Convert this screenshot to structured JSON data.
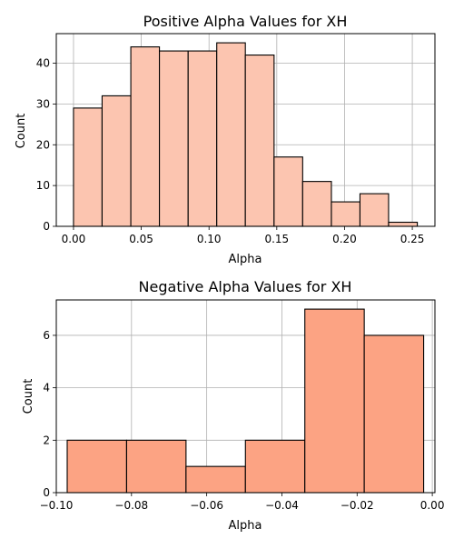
{
  "chart_data": [
    {
      "type": "bar",
      "title": "Positive Alpha Values for XH",
      "xlabel": "Alpha",
      "ylabel": "Count",
      "xlim": [
        -0.0127,
        0.2667
      ],
      "ylim": [
        0,
        47.25
      ],
      "grid": true,
      "color": "#fcc5b0",
      "edge_color": "#000000",
      "bins": [
        {
          "x0": 0.0,
          "x1": 0.0211,
          "count": 29
        },
        {
          "x0": 0.0211,
          "x1": 0.0423,
          "count": 32
        },
        {
          "x0": 0.0423,
          "x1": 0.0634,
          "count": 44
        },
        {
          "x0": 0.0634,
          "x1": 0.0846,
          "count": 43
        },
        {
          "x0": 0.0846,
          "x1": 0.1057,
          "count": 43
        },
        {
          "x0": 0.1057,
          "x1": 0.1268,
          "count": 45
        },
        {
          "x0": 0.1268,
          "x1": 0.148,
          "count": 42
        },
        {
          "x0": 0.148,
          "x1": 0.1691,
          "count": 17
        },
        {
          "x0": 0.1691,
          "x1": 0.1903,
          "count": 11
        },
        {
          "x0": 0.1903,
          "x1": 0.2114,
          "count": 6
        },
        {
          "x0": 0.2114,
          "x1": 0.2325,
          "count": 8
        },
        {
          "x0": 0.2325,
          "x1": 0.2537,
          "count": 1
        }
      ],
      "xticks": [
        0.0,
        0.05,
        0.1,
        0.15,
        0.2,
        0.25
      ],
      "xtick_labels": [
        "0.00",
        "0.05",
        "0.10",
        "0.15",
        "0.20",
        "0.25"
      ],
      "yticks": [
        0,
        10,
        20,
        30,
        40
      ],
      "ytick_labels": [
        "0",
        "10",
        "20",
        "30",
        "40"
      ]
    },
    {
      "type": "bar",
      "title": "Negative Alpha Values for XH",
      "xlabel": "Alpha",
      "ylabel": "Count",
      "xlim": [
        -0.1,
        0.0007
      ],
      "ylim": [
        0,
        7.35
      ],
      "grid": true,
      "color": "#fca383",
      "edge_color": "#000000",
      "bins": [
        {
          "x0": -0.0971,
          "x1": -0.0813,
          "count": 2
        },
        {
          "x0": -0.0813,
          "x1": -0.0655,
          "count": 2
        },
        {
          "x0": -0.0655,
          "x1": -0.0497,
          "count": 1
        },
        {
          "x0": -0.0497,
          "x1": -0.0339,
          "count": 2
        },
        {
          "x0": -0.0339,
          "x1": -0.0181,
          "count": 7
        },
        {
          "x0": -0.0181,
          "x1": -0.0023,
          "count": 6
        }
      ],
      "xticks": [
        -0.1,
        -0.08,
        -0.06,
        -0.04,
        -0.02,
        0.0
      ],
      "xtick_labels": [
        "−0.10",
        "−0.08",
        "−0.06",
        "−0.04",
        "−0.02",
        "0.00"
      ],
      "yticks": [
        0,
        2,
        4,
        6
      ],
      "ytick_labels": [
        "0",
        "2",
        "4",
        "6"
      ]
    }
  ]
}
